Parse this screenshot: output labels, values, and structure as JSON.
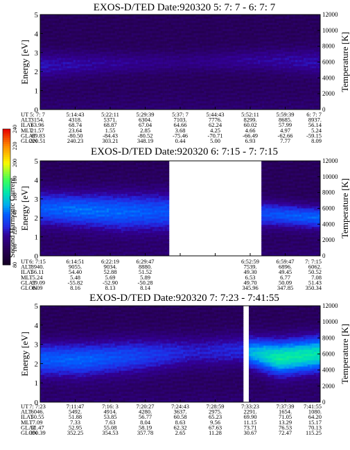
{
  "chart_data": {
    "type": "heatmap",
    "y_left_label": "Energy [eV]",
    "y_right_label": "Temperature [K]",
    "ylim_energy": [
      0,
      5
    ],
    "energy_ticks": [
      "0",
      "1",
      "2",
      "3",
      "4",
      "5"
    ],
    "ylim_temperature": [
      0,
      12000
    ],
    "temperature_ticks": [
      "0",
      "2000",
      "4000",
      "6000",
      "8000",
      "10000",
      "12000"
    ],
    "colorbar": {
      "label": "Second Harmonic Current",
      "range": [
        80,
        240
      ],
      "ticks": [
        "80",
        "100",
        "120",
        "140",
        "160",
        "180",
        "200",
        "220",
        "240"
      ]
    },
    "ephemeris_row_labels": [
      "UT",
      "ALT",
      "ILAT",
      "MLT",
      "GLAT",
      "GLON"
    ],
    "panels": [
      {
        "title": "EXOS-D/TED   Date:920320  5: 7: 7 - 6: 7: 7",
        "ephemeris": [
          [
            "5: 7: 7",
            "5:14:43",
            "5:22:11",
            "5:29:39",
            "5:37: 7",
            "5:44:43",
            "5:52:11",
            "5:59:39",
            "6: 7: 7"
          ],
          [
            "3154.",
            "4318.",
            "5371.",
            "6304.",
            "7103.",
            "7776.",
            "8299.",
            "8685.",
            "8937."
          ],
          [
            "63.96",
            "68.74",
            "68.87",
            "67.04",
            "64.66",
            "62.24",
            "60.02",
            "57.99",
            "56.14"
          ],
          [
            "21.57",
            "23.64",
            "1.55",
            "2.85",
            "3.68",
            "4.25",
            "4.66",
            "4.97",
            "5.24"
          ],
          [
            "-69.83",
            "-80.50",
            "-84.43",
            "-80.52",
            "-75.46",
            "-70.71",
            "-66.49",
            "-62.66",
            "-59.15"
          ],
          [
            "220.51",
            "240.23",
            "303.21",
            "348.19",
            "0.44",
            "5.00",
            "6.93",
            "7.77",
            "8.09"
          ]
        ],
        "data_segments": [
          [
            0.0,
            1.0
          ]
        ],
        "profile": [
          {
            "t": 0.0,
            "center_ev": 2.3,
            "width_ev": 0.7,
            "intensity": 120
          },
          {
            "t": 0.2,
            "center_ev": 2.4,
            "width_ev": 0.6,
            "intensity": 115
          },
          {
            "t": 0.5,
            "center_ev": 2.5,
            "width_ev": 0.5,
            "intensity": 110
          },
          {
            "t": 0.8,
            "center_ev": 2.6,
            "width_ev": 0.6,
            "intensity": 115
          },
          {
            "t": 1.0,
            "center_ev": 2.5,
            "width_ev": 0.7,
            "intensity": 118
          }
        ]
      },
      {
        "title": "EXOS-D/TED   Date:920320  6: 7:15 - 7: 7:15",
        "ephemeris": [
          [
            "6: 7:15",
            "6:14:51",
            "6:22:19",
            "6:29:47",
            "",
            "",
            "6:52:59",
            "6:59:47",
            "7: 7:15"
          ],
          [
            "8940.",
            "9055.",
            "9034.",
            "8880.",
            "",
            "",
            "7539.",
            "6896.",
            "6062."
          ],
          [
            "56.11",
            "54.40",
            "52.88",
            "51.52",
            "",
            "",
            "49.30",
            "49.45",
            "50.52"
          ],
          [
            "5.24",
            "5.48",
            "5.69",
            "5.89",
            "",
            "",
            "6.53",
            "6.77",
            "7.08"
          ],
          [
            "-59.09",
            "-55.82",
            "-52.90",
            "-50.28",
            "",
            "",
            "49.70",
            "50.09",
            "51.43"
          ],
          [
            "8.09",
            "8.16",
            "8.13",
            "8.14",
            "",
            "",
            "345.96",
            "347.85",
            "350.34"
          ]
        ],
        "data_segments": [
          [
            0.0,
            0.46
          ],
          [
            0.79,
            1.0
          ]
        ],
        "profile": [
          {
            "t": 0.0,
            "center_ev": 2.5,
            "width_ev": 0.9,
            "intensity": 138
          },
          {
            "t": 0.15,
            "center_ev": 2.4,
            "width_ev": 0.9,
            "intensity": 142
          },
          {
            "t": 0.3,
            "center_ev": 2.3,
            "width_ev": 1.0,
            "intensity": 140
          },
          {
            "t": 0.46,
            "center_ev": 2.3,
            "width_ev": 1.0,
            "intensity": 136
          },
          {
            "t": 0.79,
            "center_ev": 2.2,
            "width_ev": 0.7,
            "intensity": 134
          },
          {
            "t": 0.9,
            "center_ev": 2.1,
            "width_ev": 0.6,
            "intensity": 138
          },
          {
            "t": 1.0,
            "center_ev": 2.0,
            "width_ev": 0.6,
            "intensity": 140
          }
        ]
      },
      {
        "title": "EXOS-D/TED   Date:920320  7: 7:23 - 7:41:55",
        "ephemeris": [
          [
            "7: 7:23",
            "7:11:47",
            "7:16: 3",
            "7:20:27",
            "7:24:43",
            "7:28:59",
            "7:33:23",
            "7:37:39",
            "7:41:55"
          ],
          [
            "6046.",
            "5492.",
            "4914.",
            "4280.",
            "3637.",
            "2975.",
            "2291.",
            "1654.",
            "1080."
          ],
          [
            "50.55",
            "51.88",
            "53.85",
            "56.77",
            "60.58",
            "65.23",
            "69.90",
            "71.05",
            "64.20"
          ],
          [
            "7.09",
            "7.33",
            "7.63",
            "8.04",
            "8.63",
            "9.56",
            "11.15",
            "13.29",
            "15.17"
          ],
          [
            "51.47",
            "52.95",
            "55.08",
            "58.19",
            "62.32",
            "67.63",
            "73.71",
            "76.53",
            "70.13"
          ],
          [
            "350.39",
            "352.25",
            "354.53",
            "357.78",
            "2.65",
            "11.28",
            "30.67",
            "72.47",
            "115.25"
          ]
        ],
        "data_segments": [
          [
            0.0,
            0.725
          ],
          [
            0.745,
            1.0
          ]
        ],
        "profile": [
          {
            "t": 0.0,
            "center_ev": 2.2,
            "width_ev": 0.9,
            "intensity": 138
          },
          {
            "t": 0.15,
            "center_ev": 2.2,
            "width_ev": 0.9,
            "intensity": 140
          },
          {
            "t": 0.35,
            "center_ev": 2.4,
            "width_ev": 0.9,
            "intensity": 132
          },
          {
            "t": 0.55,
            "center_ev": 2.6,
            "width_ev": 0.8,
            "intensity": 122
          },
          {
            "t": 0.725,
            "center_ev": 2.7,
            "width_ev": 0.8,
            "intensity": 125
          },
          {
            "t": 0.745,
            "center_ev": 2.6,
            "width_ev": 0.8,
            "intensity": 150
          },
          {
            "t": 0.85,
            "center_ev": 2.3,
            "width_ev": 0.9,
            "intensity": 168
          },
          {
            "t": 1.0,
            "center_ev": 2.5,
            "width_ev": 0.9,
            "intensity": 165
          }
        ]
      }
    ]
  }
}
